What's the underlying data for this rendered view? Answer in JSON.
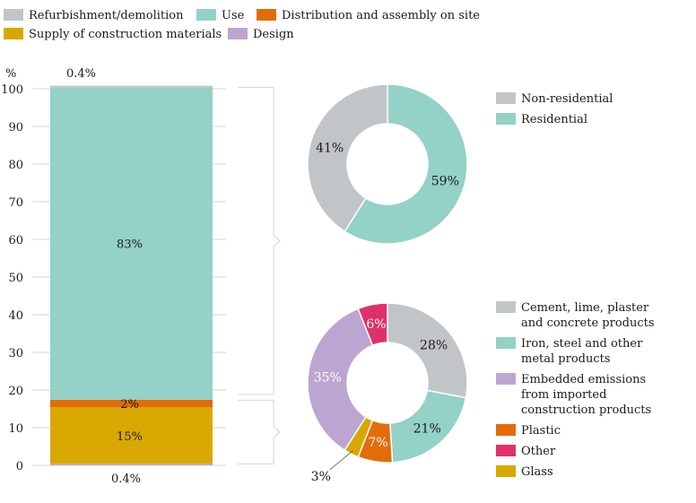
{
  "chart_data": [
    {
      "type": "stacked-bar",
      "legend": [
        {
          "name": "Refurbishment/demolition",
          "color": "#c1c5c7"
        },
        {
          "name": "Use",
          "color": "#94d1c6"
        },
        {
          "name": "Distribution and assembly on site",
          "color": "#e36c0a"
        },
        {
          "name": "Supply of construction materials",
          "color": "#d9a800"
        },
        {
          "name": "Design",
          "color": "#bda5d1"
        }
      ],
      "legend_placement": "top",
      "ylabel": "%",
      "ylim": [
        0,
        100
      ],
      "yticks": [
        0,
        10,
        20,
        30,
        40,
        50,
        60,
        70,
        80,
        90,
        100
      ],
      "grid": true,
      "segments": [
        {
          "series": "Design",
          "value": 0.4,
          "color": "#bda5d1",
          "label": "0.4%"
        },
        {
          "series": "Supply of construction materials",
          "value": 15,
          "color": "#d9a800",
          "label": "15%"
        },
        {
          "series": "Distribution and assembly on site",
          "value": 2,
          "color": "#e36c0a",
          "label": "2%"
        },
        {
          "series": "Use",
          "value": 83,
          "color": "#94d1c6",
          "label": "83%"
        },
        {
          "series": "Refurbishment/demolition",
          "value": 0.4,
          "color": "#c1c5c7",
          "label": "0.4%"
        }
      ]
    },
    {
      "type": "pie",
      "breakdown_of": "Use",
      "legend": [
        {
          "name": "Non-residential",
          "color": "#c1c5c7"
        },
        {
          "name": "Residential",
          "color": "#94d1c6"
        }
      ],
      "slices": [
        {
          "name": "Residential",
          "value": 59,
          "label": "59%",
          "color": "#94d1c6"
        },
        {
          "name": "Non-residential",
          "value": 41,
          "label": "41%",
          "color": "#c1c5c7"
        }
      ]
    },
    {
      "type": "pie",
      "breakdown_of": "Supply of construction materials",
      "legend": [
        {
          "name": "Cement, lime, plaster and concrete products",
          "lines": [
            "Cement, lime, plaster",
            "and concrete products"
          ],
          "color": "#c1c5c7"
        },
        {
          "name": "Iron, steel and other metal products",
          "lines": [
            "Iron, steel and other",
            "metal products"
          ],
          "color": "#94d1c6"
        },
        {
          "name": "Embedded emissions from imported construction products",
          "lines": [
            "Embedded emissions",
            "from imported",
            "construction products"
          ],
          "color": "#bda5d1"
        },
        {
          "name": "Plastic",
          "lines": [
            "Plastic"
          ],
          "color": "#e36c0a"
        },
        {
          "name": "Other",
          "lines": [
            "Other"
          ],
          "color": "#e0306a"
        },
        {
          "name": "Glass",
          "lines": [
            "Glass"
          ],
          "color": "#d9a800"
        }
      ],
      "slices": [
        {
          "name": "Cement, lime, plaster and concrete products",
          "value": 28,
          "label": "28%",
          "color": "#c1c5c7"
        },
        {
          "name": "Iron, steel and other metal products",
          "value": 21,
          "label": "21%",
          "color": "#94d1c6"
        },
        {
          "name": "Plastic",
          "value": 7,
          "label": "7%",
          "color": "#e36c0a"
        },
        {
          "name": "Glass",
          "value": 3,
          "label": "3%",
          "color": "#d9a800"
        },
        {
          "name": "Embedded emissions from imported construction products",
          "value": 35,
          "label": "35%",
          "color": "#bda5d1"
        },
        {
          "name": "Other",
          "value": 6,
          "label": "6%",
          "color": "#e0306a"
        }
      ]
    }
  ]
}
